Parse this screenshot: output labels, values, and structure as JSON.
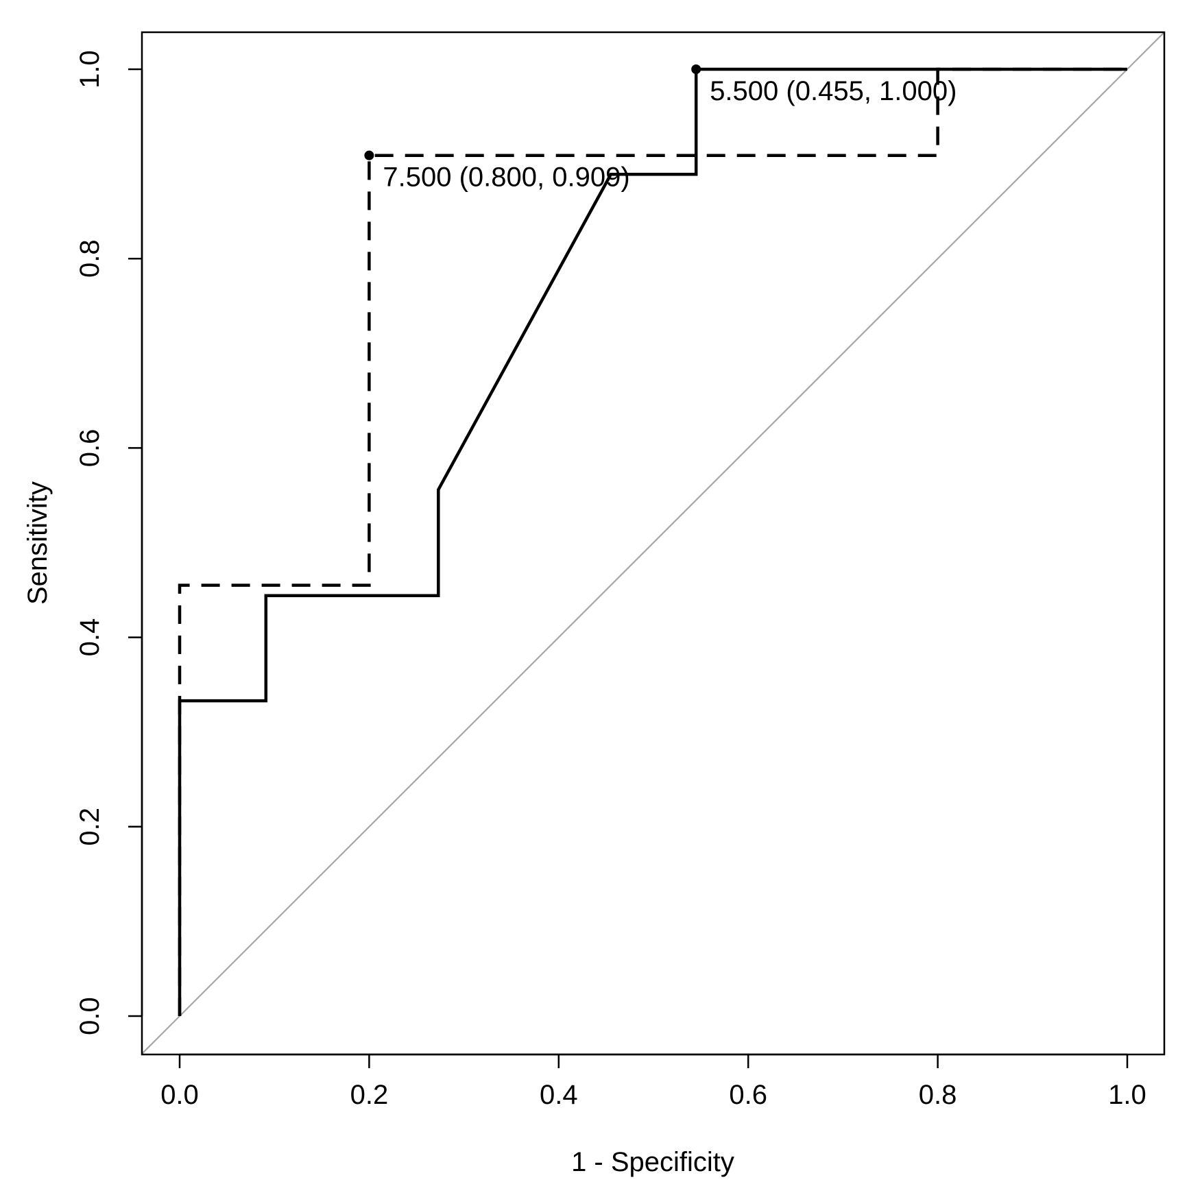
{
  "chart_data": {
    "type": "line",
    "title": "",
    "xlabel": "1 - Specificity",
    "ylabel": "Sensitivity",
    "xlim": [
      0.0,
      1.0
    ],
    "ylim": [
      0.0,
      1.0
    ],
    "x_ticks": [
      "0.0",
      "0.2",
      "0.4",
      "0.6",
      "0.8",
      "1.0"
    ],
    "y_ticks": [
      "0.0",
      "0.2",
      "0.4",
      "0.6",
      "0.8",
      "1.0"
    ],
    "grid": false,
    "legend": "none",
    "colors": {
      "curves": "#000000",
      "reference": "#a6a6a6"
    },
    "reference_line": {
      "x": [
        0.0,
        1.0
      ],
      "y": [
        0.0,
        1.0
      ]
    },
    "series": [
      {
        "style": "solid",
        "x": [
          0.0,
          0.0,
          0.091,
          0.091,
          0.273,
          0.273,
          0.455,
          0.545,
          0.545,
          1.0
        ],
        "y": [
          0.0,
          0.333,
          0.333,
          0.444,
          0.444,
          0.556,
          0.889,
          0.889,
          1.0,
          1.0
        ]
      },
      {
        "style": "dashed",
        "x": [
          0.0,
          0.0,
          0.2,
          0.2,
          0.8,
          0.8,
          1.0
        ],
        "y": [
          0.0,
          0.455,
          0.455,
          0.909,
          0.909,
          1.0,
          1.0
        ]
      }
    ],
    "annotations": [
      {
        "x": 0.545,
        "y": 1.0,
        "text": "5.500 (0.455, 1.000)"
      },
      {
        "x": 0.2,
        "y": 0.909,
        "text": "7.500 (0.800, 0.909)"
      }
    ]
  }
}
